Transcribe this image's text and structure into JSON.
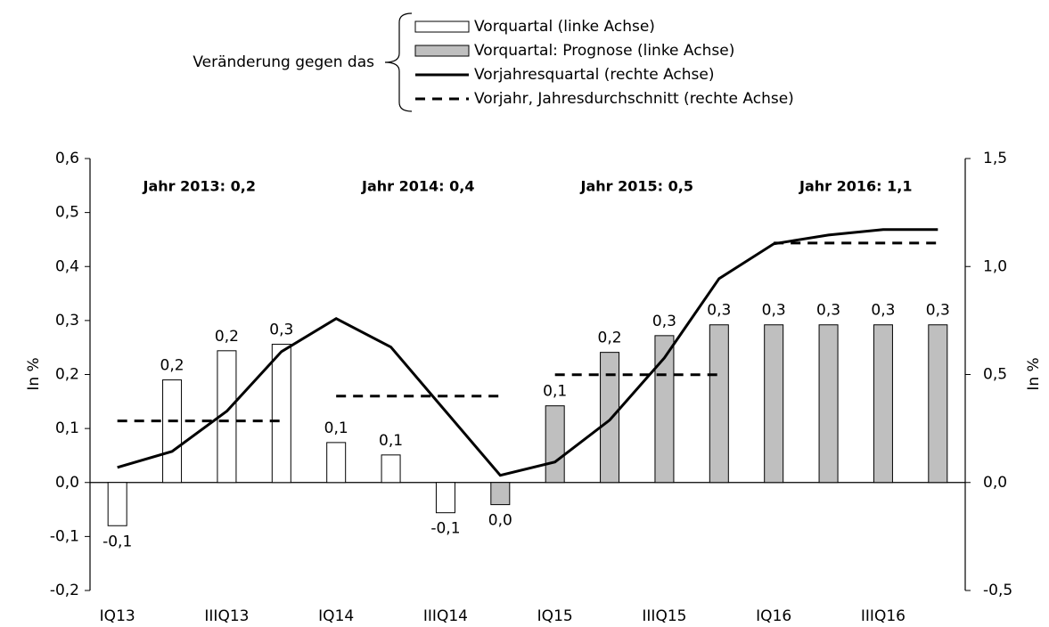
{
  "chart_data": {
    "type": "bar",
    "legend_title": "Veränderung gegen das",
    "y_label": "In %",
    "y2_label": "In %",
    "categories": [
      "IQ13",
      null,
      "IIIQ13",
      null,
      "IQ14",
      null,
      "IIIQ14",
      null,
      "IQ15",
      null,
      "IIIQ15",
      null,
      "IQ16",
      null,
      "IIIQ16",
      null
    ],
    "ylim": [
      -0.2,
      0.6
    ],
    "yticks": [
      {
        "value": -0.2,
        "label": "-0,2"
      },
      {
        "value": -0.1,
        "label": "-0,1"
      },
      {
        "value": 0,
        "label": "0,0"
      },
      {
        "value": 0.1,
        "label": "0,1"
      },
      {
        "value": 0.2,
        "label": "0,2"
      },
      {
        "value": 0.3,
        "label": "0,3"
      },
      {
        "value": 0.4,
        "label": "0,4"
      },
      {
        "value": 0.5,
        "label": "0,5"
      },
      {
        "value": 0.6,
        "label": "0,6"
      }
    ],
    "y2lim": [
      -0.5,
      1.5
    ],
    "y2ticks": [
      {
        "value": -0.5,
        "label": "-0,5"
      },
      {
        "value": 0,
        "label": "0,0"
      },
      {
        "value": 0.5,
        "label": "0,5"
      },
      {
        "value": 1,
        "label": "1,0"
      },
      {
        "value": 1.5,
        "label": "1,5"
      }
    ],
    "annotations": [
      "Jahr 2013: 0,2",
      "Jahr 2014: 0,4",
      "Jahr 2015: 0,5",
      "Jahr 2016: 1,1"
    ],
    "series": [
      {
        "name": "Vorquartal (linke Achse)",
        "type": "bar",
        "color": "#ffffff",
        "values": [
          -0.08,
          0.19,
          0.244,
          0.256,
          0.074,
          0.051,
          -0.056,
          null,
          null,
          null,
          null,
          null,
          null,
          null,
          null,
          null
        ],
        "value_labels": [
          "-0,1",
          "0,2",
          "0,2",
          "0,3",
          "0,1",
          "0,1",
          "-0,1",
          null,
          null,
          null,
          null,
          null,
          null,
          null,
          null,
          null
        ]
      },
      {
        "name": "Vorquartal: Prognose (linke Achse)",
        "type": "bar",
        "color": "#bfbfbf",
        "values": [
          null,
          null,
          null,
          null,
          null,
          null,
          null,
          -0.041,
          0.142,
          0.241,
          0.272,
          0.292,
          0.292,
          0.292,
          0.292,
          0.292
        ],
        "value_labels": [
          null,
          null,
          null,
          null,
          null,
          null,
          null,
          "0,0",
          "0,1",
          "0,2",
          "0,3",
          "0,3",
          "0,3",
          "0,3",
          "0,3",
          "0,3"
        ]
      },
      {
        "name": "Vorjahresquartal (rechte Achse)",
        "type": "line",
        "axis": "y2",
        "color": "#000000",
        "values": [
          0.07,
          0.144,
          0.33,
          0.606,
          0.759,
          0.627,
          0.33,
          0.033,
          0.095,
          0.289,
          0.577,
          0.944,
          1.105,
          1.146,
          1.171,
          1.171
        ]
      },
      {
        "name": "Vorjahr, Jahresdurchschnitt (rechte Achse)",
        "type": "line",
        "dashed": true,
        "axis": "y2",
        "color": "#000000",
        "values": [
          0.285,
          0.285,
          0.285,
          0.285,
          0.4,
          0.4,
          0.4,
          0.4,
          0.499,
          0.499,
          0.499,
          0.499,
          1.109,
          1.109,
          1.109,
          1.109
        ]
      }
    ]
  }
}
